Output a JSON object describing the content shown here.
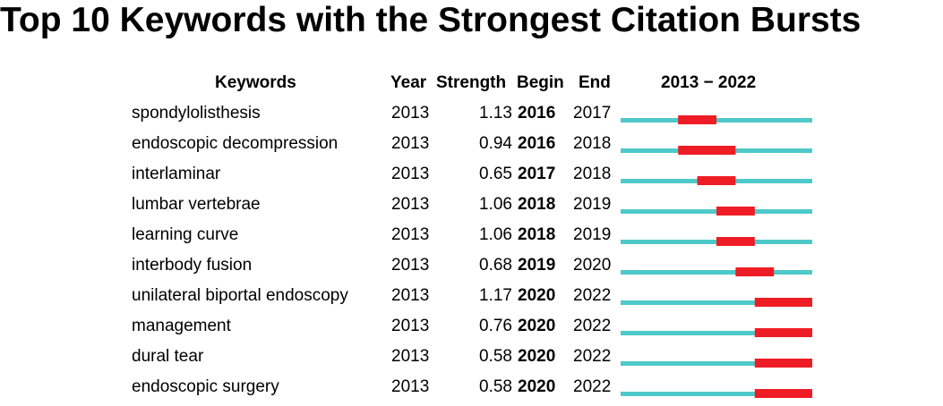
{
  "title": "Top 10 Keywords with the Strongest Citation Bursts",
  "headers": {
    "keywords": "Keywords",
    "year": "Year",
    "strength": "Strength",
    "begin": "Begin",
    "end": "End",
    "range": "2013 − 2022"
  },
  "colors": {
    "base": "#4ec9c9",
    "burst": "#ee1c25"
  },
  "chart_data": {
    "type": "table",
    "title": "Top 10 Keywords with the Strongest Citation Bursts",
    "range": [
      2013,
      2022
    ],
    "columns": [
      "Keywords",
      "Year",
      "Strength",
      "Begin",
      "End",
      "2013 − 2022"
    ],
    "rows": [
      {
        "keyword": "spondylolisthesis",
        "year": "2013",
        "strength": "1.13",
        "begin": "2016",
        "end": "2017"
      },
      {
        "keyword": "endoscopic decompression",
        "year": "2013",
        "strength": "0.94",
        "begin": "2016",
        "end": "2018"
      },
      {
        "keyword": "interlaminar",
        "year": "2013",
        "strength": "0.65",
        "begin": "2017",
        "end": "2018"
      },
      {
        "keyword": "lumbar vertebrae",
        "year": "2013",
        "strength": "1.06",
        "begin": "2018",
        "end": "2019"
      },
      {
        "keyword": "learning curve",
        "year": "2013",
        "strength": "1.06",
        "begin": "2018",
        "end": "2019"
      },
      {
        "keyword": "interbody fusion",
        "year": "2013",
        "strength": "0.68",
        "begin": "2019",
        "end": "2020"
      },
      {
        "keyword": "unilateral biportal endoscopy",
        "year": "2013",
        "strength": "1.17",
        "begin": "2020",
        "end": "2022"
      },
      {
        "keyword": "management",
        "year": "2013",
        "strength": "0.76",
        "begin": "2020",
        "end": "2022"
      },
      {
        "keyword": "dural tear",
        "year": "2013",
        "strength": "0.58",
        "begin": "2020",
        "end": "2022"
      },
      {
        "keyword": "endoscopic surgery",
        "year": "2013",
        "strength": "0.58",
        "begin": "2020",
        "end": "2022"
      }
    ]
  }
}
